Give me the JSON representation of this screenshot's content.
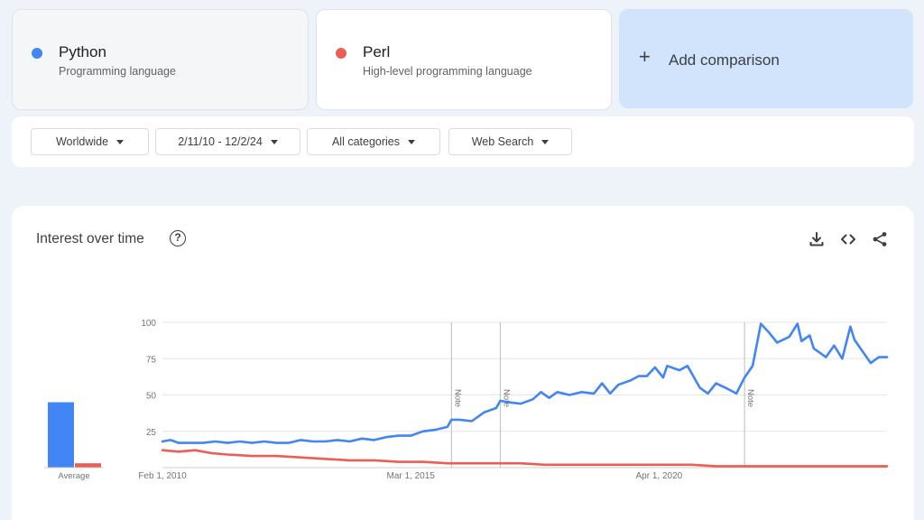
{
  "terms": [
    {
      "name": "Python",
      "description": "Programming language",
      "color": "#4285f4"
    },
    {
      "name": "Perl",
      "description": "High-level programming language",
      "color": "#ea5f55"
    }
  ],
  "add_comparison": {
    "icon": "plus-icon",
    "label": "Add comparison"
  },
  "filters": {
    "region": "Worldwide",
    "date_range": "2/11/10 - 12/2/24",
    "category": "All categories",
    "search_type": "Web Search"
  },
  "section": {
    "title": "Interest over time",
    "icons": [
      "help-icon",
      "download-icon",
      "embed-code-icon",
      "share-icon"
    ]
  },
  "chart_data": {
    "type": "line",
    "x_start": "2010-02",
    "x_end": "2024-12",
    "x_ticks": [
      "Feb 1, 2010",
      "Mar 1, 2015",
      "Apr 1, 2020"
    ],
    "ylim": [
      0,
      100
    ],
    "y_ticks": [
      25,
      50,
      75,
      100
    ],
    "grid": true,
    "notes": [
      {
        "date": "2016-01",
        "label": "Note"
      },
      {
        "date": "2017-01",
        "label": "Note"
      },
      {
        "date": "2022-01",
        "label": "Note"
      }
    ],
    "series": [
      {
        "name": "Python",
        "color": "#4285f4",
        "points": [
          [
            "2010-02",
            18
          ],
          [
            "2010-04",
            19
          ],
          [
            "2010-06",
            17
          ],
          [
            "2010-09",
            17
          ],
          [
            "2010-12",
            17
          ],
          [
            "2011-03",
            18
          ],
          [
            "2011-06",
            17
          ],
          [
            "2011-09",
            18
          ],
          [
            "2011-12",
            17
          ],
          [
            "2012-03",
            18
          ],
          [
            "2012-06",
            17
          ],
          [
            "2012-09",
            17
          ],
          [
            "2012-12",
            19
          ],
          [
            "2013-03",
            18
          ],
          [
            "2013-06",
            18
          ],
          [
            "2013-09",
            19
          ],
          [
            "2013-12",
            18
          ],
          [
            "2014-03",
            20
          ],
          [
            "2014-06",
            19
          ],
          [
            "2014-09",
            21
          ],
          [
            "2014-12",
            22
          ],
          [
            "2015-03",
            22
          ],
          [
            "2015-06",
            25
          ],
          [
            "2015-09",
            26
          ],
          [
            "2015-12",
            28
          ],
          [
            "2016-01",
            33
          ],
          [
            "2016-03",
            33
          ],
          [
            "2016-06",
            32
          ],
          [
            "2016-09",
            38
          ],
          [
            "2016-12",
            41
          ],
          [
            "2017-01",
            46
          ],
          [
            "2017-03",
            45
          ],
          [
            "2017-06",
            44
          ],
          [
            "2017-09",
            47
          ],
          [
            "2017-11",
            52
          ],
          [
            "2018-01",
            48
          ],
          [
            "2018-03",
            52
          ],
          [
            "2018-06",
            50
          ],
          [
            "2018-09",
            52
          ],
          [
            "2018-12",
            51
          ],
          [
            "2019-02",
            58
          ],
          [
            "2019-04",
            51
          ],
          [
            "2019-06",
            57
          ],
          [
            "2019-09",
            60
          ],
          [
            "2019-11",
            63
          ],
          [
            "2020-01",
            63
          ],
          [
            "2020-03",
            69
          ],
          [
            "2020-05",
            62
          ],
          [
            "2020-06",
            70
          ],
          [
            "2020-09",
            67
          ],
          [
            "2020-11",
            70
          ],
          [
            "2021-02",
            55
          ],
          [
            "2021-04",
            51
          ],
          [
            "2021-06",
            58
          ],
          [
            "2021-09",
            54
          ],
          [
            "2021-11",
            51
          ],
          [
            "2022-01",
            62
          ],
          [
            "2022-03",
            70
          ],
          [
            "2022-05",
            99
          ],
          [
            "2022-07",
            93
          ],
          [
            "2022-09",
            86
          ],
          [
            "2022-12",
            90
          ],
          [
            "2023-02",
            99
          ],
          [
            "2023-03",
            87
          ],
          [
            "2023-05",
            91
          ],
          [
            "2023-06",
            82
          ],
          [
            "2023-09",
            76
          ],
          [
            "2023-11",
            84
          ],
          [
            "2024-01",
            75
          ],
          [
            "2024-03",
            97
          ],
          [
            "2024-04",
            88
          ],
          [
            "2024-06",
            80
          ],
          [
            "2024-08",
            72
          ],
          [
            "2024-10",
            76
          ],
          [
            "2024-12",
            76
          ]
        ]
      },
      {
        "name": "Perl",
        "color": "#ea5f55",
        "points": [
          [
            "2010-02",
            12
          ],
          [
            "2010-06",
            11
          ],
          [
            "2010-10",
            12
          ],
          [
            "2011-02",
            10
          ],
          [
            "2011-06",
            9
          ],
          [
            "2011-12",
            8
          ],
          [
            "2012-06",
            8
          ],
          [
            "2012-12",
            7
          ],
          [
            "2013-06",
            6
          ],
          [
            "2013-12",
            5
          ],
          [
            "2014-06",
            5
          ],
          [
            "2014-12",
            4
          ],
          [
            "2015-06",
            4
          ],
          [
            "2015-12",
            3
          ],
          [
            "2016-06",
            3
          ],
          [
            "2016-12",
            3
          ],
          [
            "2017-06",
            3
          ],
          [
            "2017-12",
            2
          ],
          [
            "2018-06",
            2
          ],
          [
            "2018-12",
            2
          ],
          [
            "2019-06",
            2
          ],
          [
            "2019-12",
            2
          ],
          [
            "2020-06",
            2
          ],
          [
            "2020-12",
            2
          ],
          [
            "2021-06",
            1
          ],
          [
            "2021-12",
            1
          ],
          [
            "2022-06",
            1
          ],
          [
            "2022-12",
            1
          ],
          [
            "2023-06",
            1
          ],
          [
            "2023-12",
            1
          ],
          [
            "2024-06",
            1
          ],
          [
            "2024-12",
            1
          ]
        ]
      }
    ],
    "average": {
      "label": "Average",
      "values": [
        {
          "name": "Python",
          "value": 45
        },
        {
          "name": "Perl",
          "value": 3
        }
      ]
    }
  }
}
